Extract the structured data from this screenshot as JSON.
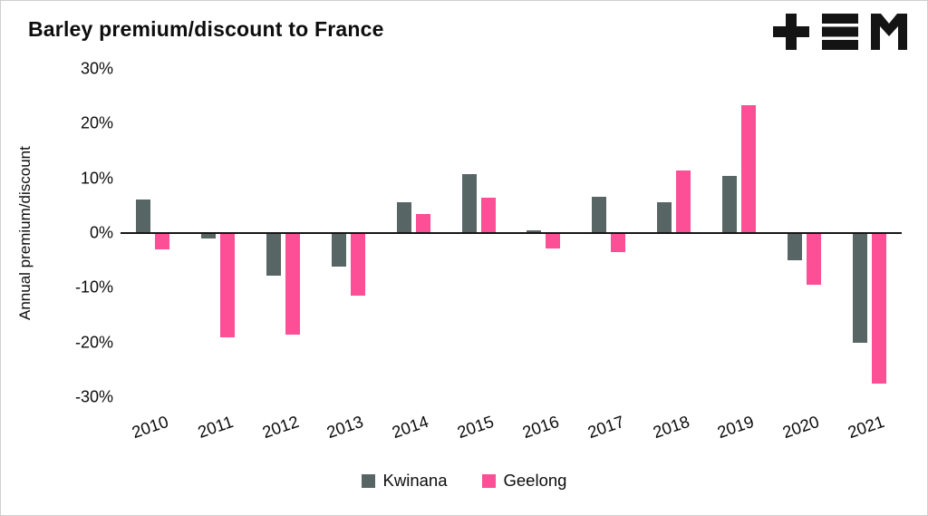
{
  "logo": {
    "name": "tem-logo",
    "color": "#141414"
  },
  "chart_data": {
    "type": "bar",
    "title": "Barley premium/discount to France",
    "ylabel": "Annual premium/discount",
    "xlabel": "",
    "categories": [
      "2010",
      "2011",
      "2012",
      "2013",
      "2014",
      "2015",
      "2016",
      "2017",
      "2018",
      "2019",
      "2020",
      "2021"
    ],
    "series": [
      {
        "name": "Kwinana",
        "color": "#576664",
        "values": [
          6.1,
          -1.0,
          -7.8,
          -6.2,
          5.6,
          10.7,
          0.5,
          6.6,
          5.6,
          10.4,
          -5.0,
          -20.0
        ]
      },
      {
        "name": "Geelong",
        "color": "#fc4f96",
        "values": [
          -3.0,
          -19.0,
          -18.6,
          -11.4,
          3.4,
          6.4,
          -2.8,
          -3.5,
          11.5,
          23.4,
          -9.4,
          -27.5
        ]
      }
    ],
    "ylim": [
      -30,
      30
    ],
    "yticks": [
      30,
      20,
      10,
      0,
      -10,
      -20,
      -30
    ],
    "ytick_labels": [
      "30%",
      "20%",
      "10%",
      "0%",
      "-10%",
      "-20%",
      "-30%"
    ],
    "grid": false,
    "legend_position": "bottom",
    "zero_line_color": "#161616"
  }
}
